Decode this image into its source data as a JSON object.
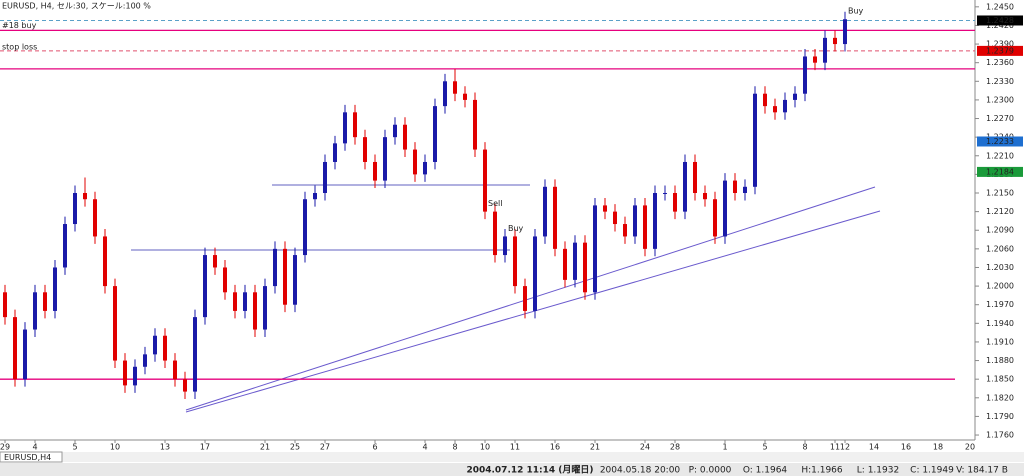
{
  "header": "EURUSD, H4, セル:30, スケール:100 %",
  "chart_data": {
    "type": "candlestick",
    "categories": [
      "29",
      null,
      null,
      "4",
      null,
      null,
      null,
      "5",
      null,
      null,
      null,
      "10",
      null,
      null,
      null,
      null,
      "13",
      null,
      null,
      null,
      "17",
      null,
      null,
      null,
      null,
      null,
      "21",
      null,
      null,
      "25",
      null,
      null,
      "27",
      null,
      null,
      null,
      null,
      "6",
      null,
      null,
      null,
      null,
      "4",
      null,
      null,
      "8",
      null,
      null,
      "10",
      null,
      null,
      "11",
      null,
      null,
      null,
      "16",
      null,
      null,
      null,
      "21",
      null,
      null,
      null,
      null,
      "24",
      null,
      null,
      "28",
      null,
      null,
      null,
      null,
      "1",
      null,
      null,
      null,
      "5",
      null,
      null,
      null,
      "8",
      null,
      null,
      "11",
      "12"
    ],
    "open": [
      1.199,
      1.195,
      1.185,
      1.193,
      1.199,
      1.196,
      1.203,
      1.21,
      1.215,
      1.214,
      1.208,
      1.2,
      1.188,
      1.184,
      1.187,
      1.189,
      1.192,
      1.188,
      1.185,
      1.183,
      1.195,
      1.205,
      1.203,
      1.199,
      1.196,
      1.199,
      1.193,
      1.2,
      1.206,
      1.197,
      1.205,
      1.214,
      1.215,
      1.22,
      1.223,
      1.228,
      1.224,
      1.22,
      1.217,
      1.224,
      1.226,
      1.222,
      1.218,
      1.22,
      1.229,
      1.233,
      1.231,
      1.23,
      1.222,
      1.212,
      1.205,
      1.208,
      1.2,
      1.196,
      1.208,
      1.216,
      1.206,
      1.201,
      1.207,
      1.199,
      1.213,
      1.212,
      1.21,
      1.208,
      1.213,
      1.206,
      1.215,
      1.215,
      1.212,
      1.22,
      1.215,
      1.214,
      1.208,
      1.217,
      1.215,
      1.216,
      1.231,
      1.229,
      1.228,
      1.23,
      1.231,
      1.237,
      1.236,
      1.24,
      1.239
    ],
    "high": [
      1.2002,
      1.1962,
      1.1942,
      1.2002,
      1.2002,
      1.2042,
      1.2112,
      1.2162,
      1.2175,
      1.2152,
      1.2092,
      1.2012,
      1.1892,
      1.1882,
      1.1902,
      1.1932,
      1.1932,
      1.1892,
      1.1862,
      1.1962,
      1.2062,
      1.2062,
      1.2042,
      1.2002,
      1.2002,
      1.2002,
      1.2012,
      1.2072,
      1.2072,
      1.2062,
      1.2152,
      1.2162,
      1.2212,
      1.2242,
      1.2292,
      1.2292,
      1.2252,
      1.2212,
      1.2252,
      1.2272,
      1.2272,
      1.2232,
      1.2212,
      1.2302,
      1.2342,
      1.235,
      1.2322,
      1.2312,
      1.2232,
      1.2132,
      1.2092,
      1.2092,
      1.2012,
      1.2092,
      1.2172,
      1.2172,
      1.2072,
      1.2082,
      1.2082,
      1.2142,
      1.2142,
      1.2132,
      1.2112,
      1.2142,
      1.2142,
      1.2162,
      1.2162,
      1.2162,
      1.2212,
      1.2212,
      1.2162,
      1.2152,
      1.2182,
      1.2182,
      1.2172,
      1.2322,
      1.2322,
      1.2302,
      1.2312,
      1.2322,
      1.2382,
      1.2382,
      1.2412,
      1.2412,
      1.2442
    ],
    "low": [
      1.1938,
      1.1838,
      1.1838,
      1.1918,
      1.1948,
      1.1948,
      1.2018,
      1.2088,
      1.2128,
      1.2068,
      1.1988,
      1.1868,
      1.1828,
      1.1828,
      1.1858,
      1.1878,
      1.1868,
      1.1838,
      1.1818,
      1.1818,
      1.1938,
      1.2018,
      1.1978,
      1.1948,
      1.1948,
      1.1918,
      1.1918,
      1.1988,
      1.1958,
      1.1958,
      1.2038,
      1.2128,
      1.2138,
      1.2188,
      1.2218,
      1.2228,
      1.2188,
      1.2158,
      1.2158,
      1.2228,
      1.2208,
      1.2168,
      1.2168,
      1.2188,
      1.2278,
      1.2298,
      1.2288,
      1.2208,
      1.2108,
      1.2038,
      1.2038,
      1.1988,
      1.1948,
      1.1948,
      1.2068,
      1.2048,
      1.1998,
      1.1998,
      1.1978,
      1.1978,
      1.2108,
      1.2088,
      1.2068,
      1.2068,
      1.2048,
      1.2048,
      1.2138,
      1.2108,
      1.2108,
      1.2138,
      1.2128,
      1.2068,
      1.2068,
      1.2138,
      1.2138,
      1.2148,
      1.2278,
      1.2268,
      1.2268,
      1.2288,
      1.2298,
      1.2348,
      1.2348,
      1.2378,
      1.2378
    ],
    "close": [
      1.195,
      1.185,
      1.193,
      1.199,
      1.196,
      1.203,
      1.21,
      1.215,
      1.214,
      1.208,
      1.2,
      1.188,
      1.184,
      1.187,
      1.189,
      1.192,
      1.188,
      1.185,
      1.183,
      1.195,
      1.205,
      1.203,
      1.199,
      1.196,
      1.199,
      1.193,
      1.2,
      1.206,
      1.197,
      1.205,
      1.214,
      1.215,
      1.22,
      1.223,
      1.228,
      1.224,
      1.22,
      1.217,
      1.224,
      1.226,
      1.222,
      1.218,
      1.22,
      1.229,
      1.233,
      1.231,
      1.23,
      1.222,
      1.212,
      1.205,
      1.208,
      1.2,
      1.196,
      1.208,
      1.216,
      1.206,
      1.201,
      1.207,
      1.199,
      1.213,
      1.212,
      1.21,
      1.208,
      1.213,
      1.206,
      1.215,
      1.215,
      1.212,
      1.22,
      1.215,
      1.214,
      1.208,
      1.217,
      1.215,
      1.216,
      1.231,
      1.229,
      1.228,
      1.23,
      1.231,
      1.237,
      1.236,
      1.24,
      1.239,
      1.243
    ],
    "up_color": "#1a1aa8",
    "down_color": "#e00000",
    "future_dates": [
      "14",
      "16",
      "18",
      "20"
    ],
    "ylim": [
      1.1752,
      1.2461
    ],
    "yticks": [
      {
        "value": 1.245,
        "label": "1.2450"
      },
      {
        "value": 1.242,
        "label": "1.2420"
      },
      {
        "value": 1.239,
        "label": "1.2390"
      },
      {
        "value": 1.236,
        "label": "1.2360"
      },
      {
        "value": 1.233,
        "label": "1.2330"
      },
      {
        "value": 1.23,
        "label": "1.2300"
      },
      {
        "value": 1.227,
        "label": "1.2270"
      },
      {
        "value": 1.224,
        "label": "1.2240"
      },
      {
        "value": 1.221,
        "label": "1.2210"
      },
      {
        "value": 1.218,
        "label": "1.2180"
      },
      {
        "value": 1.215,
        "label": "1.2150"
      },
      {
        "value": 1.212,
        "label": "1.2120"
      },
      {
        "value": 1.209,
        "label": "1.2090"
      },
      {
        "value": 1.206,
        "label": "1.2060"
      },
      {
        "value": 1.203,
        "label": "1.2030"
      },
      {
        "value": 1.2,
        "label": "1.2000"
      },
      {
        "value": 1.197,
        "label": "1.1970"
      },
      {
        "value": 1.194,
        "label": "1.1940"
      },
      {
        "value": 1.191,
        "label": "1.1910"
      },
      {
        "value": 1.188,
        "label": "1.1880"
      },
      {
        "value": 1.185,
        "label": "1.1850"
      },
      {
        "value": 1.182,
        "label": "1.1820"
      },
      {
        "value": 1.179,
        "label": "1.1790"
      },
      {
        "value": 1.176,
        "label": "1.1760"
      }
    ],
    "levels": [
      {
        "value": 1.2412,
        "color": "#e6007e",
        "style": "solid"
      },
      {
        "value": 1.235,
        "color": "#e6007e",
        "style": "solid"
      },
      {
        "value": 1.185,
        "color": "#e6007e",
        "style": "solid"
      },
      {
        "value": 1.2428,
        "color": "#5aa0c8",
        "style": "dashed"
      },
      {
        "value": 1.2379,
        "color": "#e0506e",
        "style": "dashed"
      }
    ],
    "price_markers": [
      {
        "value": 1.2428,
        "color": "#000000"
      },
      {
        "value": 1.2379,
        "color": "#e00000"
      },
      {
        "value": 1.2233,
        "color": "#1e6fd0"
      },
      {
        "value": 1.2184,
        "color": "#1a9a3a"
      }
    ],
    "annotations": [
      {
        "text": "#18 buy",
        "at": 1.242
      },
      {
        "text": "stop loss",
        "at": 1.2385
      }
    ],
    "signals": [
      {
        "text": "Sell",
        "index": 48,
        "color": "#e00000"
      },
      {
        "text": "Buy",
        "index": 50,
        "color": "#1aa070"
      },
      {
        "text": "Buy",
        "index": 84,
        "color": "#1e90ff"
      }
    ]
  },
  "tab": "EURUSD,H4",
  "status": [
    "2004.07.12 11:14 (月曜日)",
    "2004.05.18 20:00",
    "P: 0.0000",
    "O: 1.1964",
    "H:1.1966",
    "L: 1.1932",
    "C: 1.1949",
    "V: 184.17 B"
  ]
}
